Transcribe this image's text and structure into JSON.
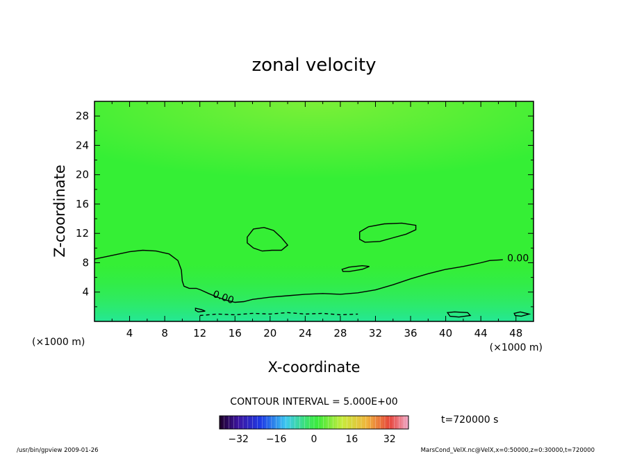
{
  "chart_data": {
    "type": "heatmap",
    "title": "zonal velocity",
    "xlabel": "X-coordinate",
    "ylabel": "Z-coordinate",
    "x_unit_left": "(×1000 m)",
    "x_unit_right": "(×1000 m)",
    "xlim": [
      0,
      50
    ],
    "ylim": [
      0,
      30
    ],
    "x_ticks": [
      4,
      8,
      12,
      16,
      20,
      24,
      28,
      32,
      36,
      40,
      44,
      48
    ],
    "y_ticks": [
      4,
      8,
      12,
      16,
      20,
      24,
      28
    ],
    "contour_interval_text": "CONTOUR INTERVAL = 5.000E+00",
    "time_label": "t=720000  s",
    "contour_labels": [
      {
        "text": "0.00",
        "x": 13.4,
        "y": 3.4
      },
      {
        "text": "0.00",
        "x": 47.0,
        "y": 8.2
      }
    ],
    "contours": [
      {
        "level": 0,
        "points": [
          [
            0,
            8.5
          ],
          [
            2,
            9.0
          ],
          [
            4,
            9.5
          ],
          [
            5.5,
            9.7
          ],
          [
            7,
            9.6
          ],
          [
            8.5,
            9.2
          ],
          [
            9.5,
            8.3
          ],
          [
            9.9,
            7.0
          ],
          [
            10,
            5.5
          ],
          [
            10.2,
            4.8
          ],
          [
            10.8,
            4.5
          ],
          [
            11.6,
            4.5
          ],
          [
            12.1,
            4.3
          ],
          [
            13,
            3.8
          ],
          [
            14,
            3.3
          ],
          [
            15,
            2.9
          ],
          [
            16,
            2.6
          ],
          [
            17,
            2.7
          ],
          [
            18,
            3.0
          ],
          [
            20,
            3.3
          ],
          [
            22,
            3.5
          ],
          [
            24,
            3.7
          ],
          [
            26,
            3.8
          ],
          [
            28,
            3.7
          ],
          [
            30,
            3.9
          ],
          [
            32,
            4.3
          ],
          [
            34,
            5.0
          ],
          [
            36,
            5.8
          ],
          [
            38,
            6.5
          ],
          [
            40,
            7.1
          ],
          [
            42,
            7.5
          ],
          [
            44,
            8.0
          ],
          [
            45,
            8.3
          ],
          [
            46.5,
            8.4
          ]
        ]
      },
      {
        "level": 0,
        "closed": true,
        "points": [
          [
            17.4,
            11.5
          ],
          [
            18.1,
            12.6
          ],
          [
            19.3,
            12.8
          ],
          [
            20.4,
            12.4
          ],
          [
            21.3,
            11.4
          ],
          [
            22,
            10.4
          ],
          [
            21.3,
            9.7
          ],
          [
            20.2,
            9.7
          ],
          [
            19.1,
            9.6
          ],
          [
            18.1,
            10.0
          ],
          [
            17.4,
            10.7
          ]
        ]
      },
      {
        "level": 0,
        "closed": true,
        "points": [
          [
            30.2,
            12.2
          ],
          [
            31.2,
            12.9
          ],
          [
            33,
            13.3
          ],
          [
            35,
            13.4
          ],
          [
            36.6,
            13.1
          ],
          [
            36.6,
            12.5
          ],
          [
            35.5,
            11.9
          ],
          [
            34,
            11.4
          ],
          [
            32.5,
            10.9
          ],
          [
            30.8,
            10.8
          ],
          [
            30.2,
            11.2
          ]
        ]
      },
      {
        "level": 0,
        "closed": true,
        "points": [
          [
            28.2,
            7.1
          ],
          [
            29,
            7.4
          ],
          [
            30.5,
            7.6
          ],
          [
            31.3,
            7.5
          ],
          [
            30.5,
            7.1
          ],
          [
            29,
            6.8
          ],
          [
            28.3,
            6.8
          ]
        ]
      },
      {
        "level": 0,
        "closed": true,
        "points": [
          [
            11.5,
            1.8
          ],
          [
            12.2,
            1.6
          ],
          [
            12.6,
            1.4
          ],
          [
            11.8,
            1.3
          ],
          [
            11.5,
            1.5
          ]
        ]
      },
      {
        "level": 0,
        "closed": true,
        "points": [
          [
            40.2,
            1.2
          ],
          [
            41,
            1.3
          ],
          [
            42.5,
            1.2
          ],
          [
            42.8,
            0.8
          ],
          [
            41.5,
            0.6
          ],
          [
            40.5,
            0.7
          ]
        ]
      },
      {
        "level": 0,
        "closed": true,
        "points": [
          [
            47.8,
            1.1
          ],
          [
            48.5,
            1.3
          ],
          [
            49.5,
            1.0
          ],
          [
            48.6,
            0.7
          ],
          [
            47.9,
            0.8
          ]
        ]
      },
      {
        "level": -5,
        "dashed": true,
        "points": [
          [
            12,
            0.8
          ],
          [
            14,
            1.0
          ],
          [
            16,
            0.9
          ],
          [
            18,
            1.1
          ],
          [
            20,
            1.0
          ],
          [
            22,
            1.2
          ],
          [
            24,
            1.0
          ],
          [
            26,
            1.1
          ],
          [
            28,
            0.9
          ],
          [
            30,
            1.0
          ]
        ]
      }
    ],
    "colorbar": {
      "min": -40,
      "max": 40,
      "ticks": [
        -32,
        -16,
        0,
        16,
        32
      ],
      "tick_labels": [
        "−32",
        "−16",
        "0",
        "16",
        "32"
      ]
    },
    "field_colors": {
      "background": "#35ef35",
      "upper_pale": "#5cf03e",
      "near_surface": "#2be85a",
      "surface_band": "#27ea8a"
    }
  },
  "footer": {
    "left": "/usr/bin/gpview   2009-01-26",
    "right": "MarsCond_VelX.nc@VelX,x=0:50000,z=0:30000,t=720000"
  }
}
